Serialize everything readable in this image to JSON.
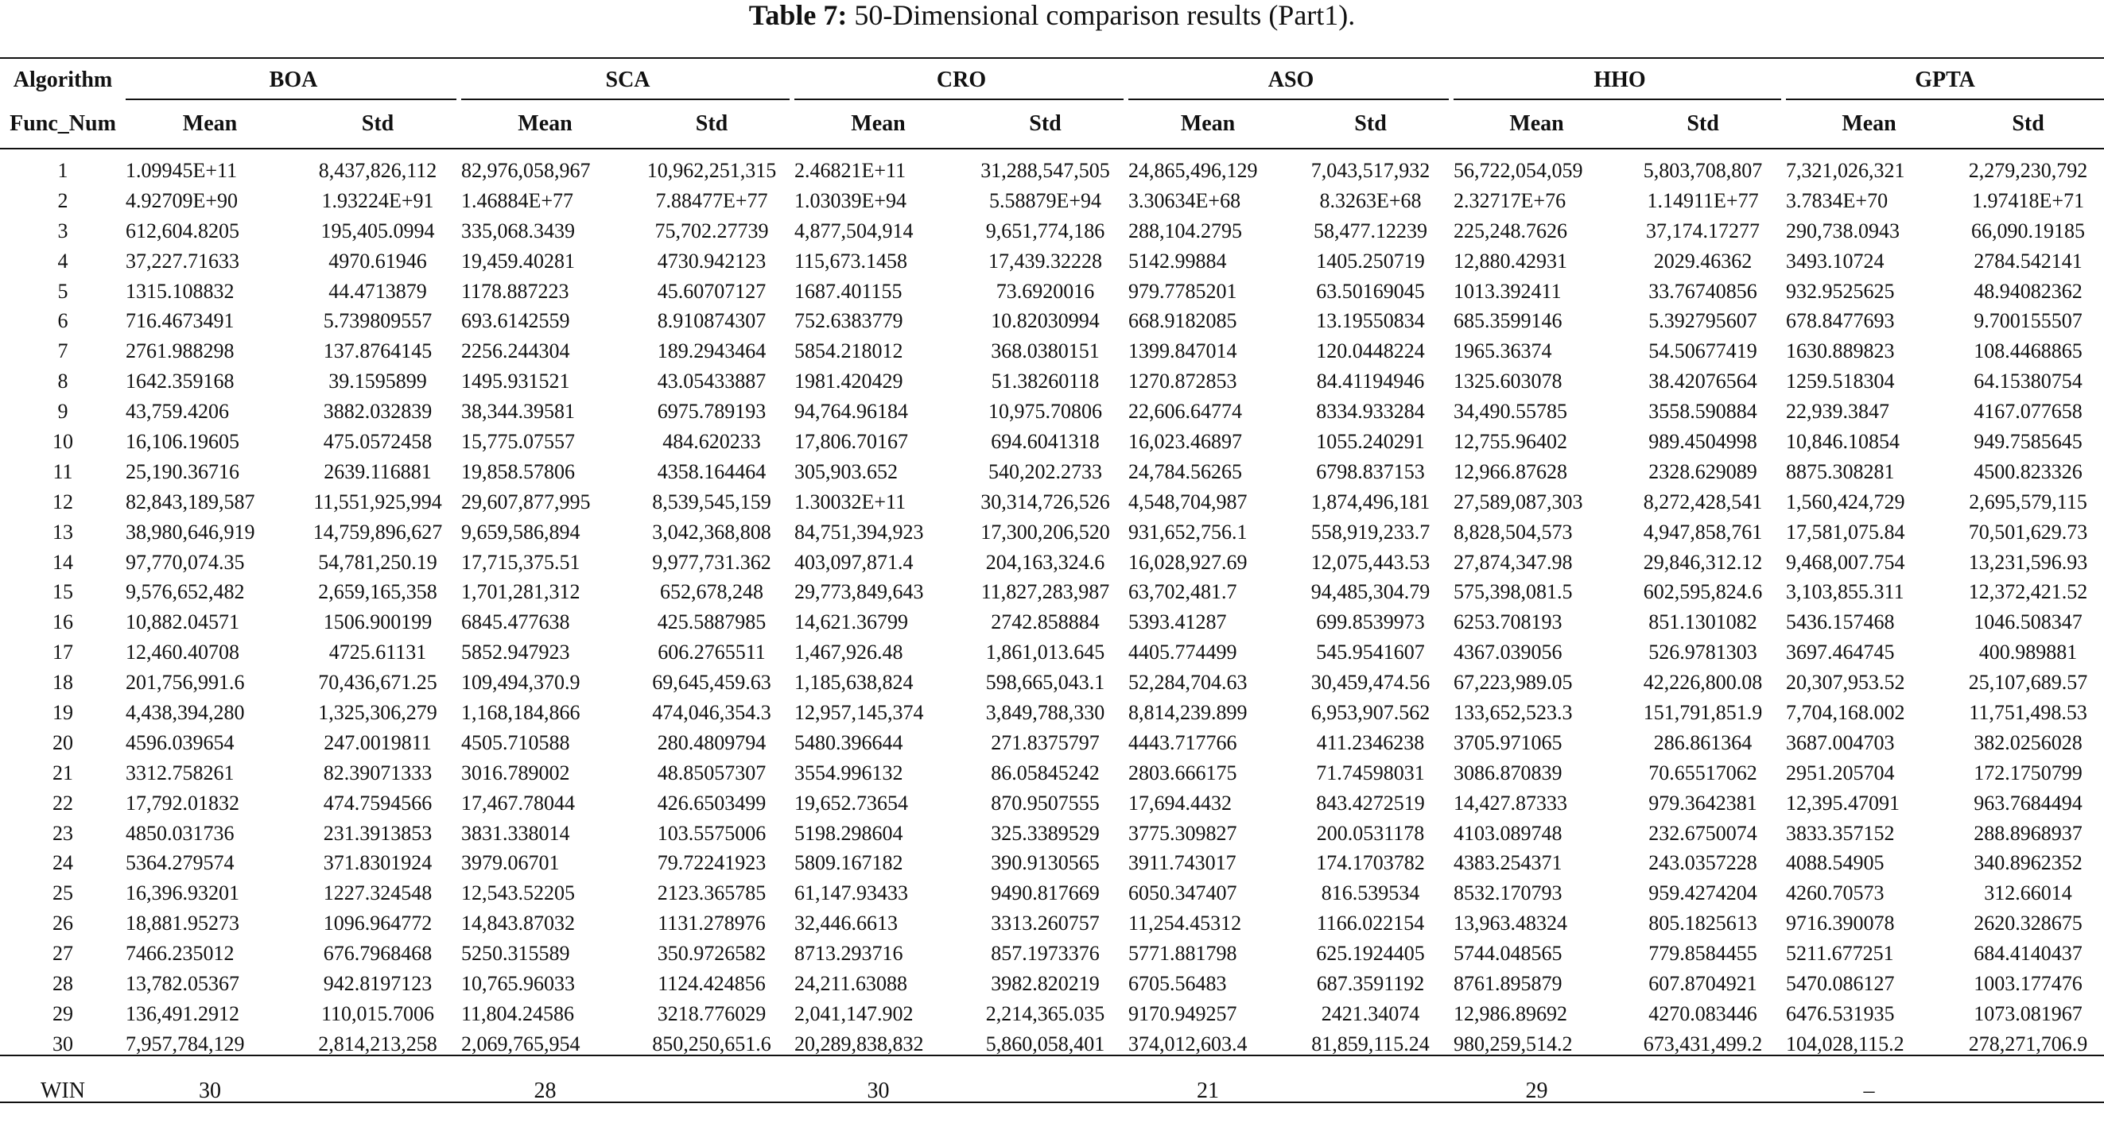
{
  "caption": {
    "label": "Table 7:",
    "text": "50-Dimensional comparison results (Part1)."
  },
  "header": {
    "row_label": "Algorithm",
    "sub_label": "Func_Num",
    "algorithms": [
      "BOA",
      "SCA",
      "CRO",
      "ASO",
      "HHO",
      "GPTA"
    ],
    "mean_label": "Mean",
    "std_label": "Std"
  },
  "rows": [
    {
      "num": "1",
      "cells": [
        "1.09945E+11",
        "8,437,826,112",
        "82,976,058,967",
        "10,962,251,315",
        "2.46821E+11",
        "31,288,547,505",
        "24,865,496,129",
        "7,043,517,932",
        "56,722,054,059",
        "5,803,708,807",
        "7,321,026,321",
        "2,279,230,792"
      ]
    },
    {
      "num": "2",
      "cells": [
        "4.92709E+90",
        "1.93224E+91",
        "1.46884E+77",
        "7.88477E+77",
        "1.03039E+94",
        "5.58879E+94",
        "3.30634E+68",
        "8.3263E+68",
        "2.32717E+76",
        "1.14911E+77",
        "3.7834E+70",
        "1.97418E+71"
      ]
    },
    {
      "num": "3",
      "cells": [
        "612,604.8205",
        "195,405.0994",
        "335,068.3439",
        "75,702.27739",
        "4,877,504,914",
        "9,651,774,186",
        "288,104.2795",
        "58,477.12239",
        "225,248.7626",
        "37,174.17277",
        "290,738.0943",
        "66,090.19185"
      ]
    },
    {
      "num": "4",
      "cells": [
        "37,227.71633",
        "4970.61946",
        "19,459.40281",
        "4730.942123",
        "115,673.1458",
        "17,439.32228",
        "5142.99884",
        "1405.250719",
        "12,880.42931",
        "2029.46362",
        "3493.10724",
        "2784.542141"
      ]
    },
    {
      "num": "5",
      "cells": [
        "1315.108832",
        "44.4713879",
        "1178.887223",
        "45.60707127",
        "1687.401155",
        "73.6920016",
        "979.7785201",
        "63.50169045",
        "1013.392411",
        "33.76740856",
        "932.9525625",
        "48.94082362"
      ]
    },
    {
      "num": "6",
      "cells": [
        "716.4673491",
        "5.739809557",
        "693.6142559",
        "8.910874307",
        "752.6383779",
        "10.82030994",
        "668.9182085",
        "13.19550834",
        "685.3599146",
        "5.392795607",
        "678.8477693",
        "9.700155507"
      ]
    },
    {
      "num": "7",
      "cells": [
        "2761.988298",
        "137.8764145",
        "2256.244304",
        "189.2943464",
        "5854.218012",
        "368.0380151",
        "1399.847014",
        "120.0448224",
        "1965.36374",
        "54.50677419",
        "1630.889823",
        "108.4468865"
      ]
    },
    {
      "num": "8",
      "cells": [
        "1642.359168",
        "39.1595899",
        "1495.931521",
        "43.05433887",
        "1981.420429",
        "51.38260118",
        "1270.872853",
        "84.41194946",
        "1325.603078",
        "38.42076564",
        "1259.518304",
        "64.15380754"
      ]
    },
    {
      "num": "9",
      "cells": [
        "43,759.4206",
        "3882.032839",
        "38,344.39581",
        "6975.789193",
        "94,764.96184",
        "10,975.70806",
        "22,606.64774",
        "8334.933284",
        "34,490.55785",
        "3558.590884",
        "22,939.3847",
        "4167.077658"
      ]
    },
    {
      "num": "10",
      "cells": [
        "16,106.19605",
        "475.0572458",
        "15,775.07557",
        "484.620233",
        "17,806.70167",
        "694.6041318",
        "16,023.46897",
        "1055.240291",
        "12,755.96402",
        "989.4504998",
        "10,846.10854",
        "949.7585645"
      ]
    },
    {
      "num": "11",
      "cells": [
        "25,190.36716",
        "2639.116881",
        "19,858.57806",
        "4358.164464",
        "305,903.652",
        "540,202.2733",
        "24,784.56265",
        "6798.837153",
        "12,966.87628",
        "2328.629089",
        "8875.308281",
        "4500.823326"
      ]
    },
    {
      "num": "12",
      "cells": [
        "82,843,189,587",
        "11,551,925,994",
        "29,607,877,995",
        "8,539,545,159",
        "1.30032E+11",
        "30,314,726,526",
        "4,548,704,987",
        "1,874,496,181",
        "27,589,087,303",
        "8,272,428,541",
        "1,560,424,729",
        "2,695,579,115"
      ]
    },
    {
      "num": "13",
      "cells": [
        "38,980,646,919",
        "14,759,896,627",
        "9,659,586,894",
        "3,042,368,808",
        "84,751,394,923",
        "17,300,206,520",
        "931,652,756.1",
        "558,919,233.7",
        "8,828,504,573",
        "4,947,858,761",
        "17,581,075.84",
        "70,501,629.73"
      ]
    },
    {
      "num": "14",
      "cells": [
        "97,770,074.35",
        "54,781,250.19",
        "17,715,375.51",
        "9,977,731.362",
        "403,097,871.4",
        "204,163,324.6",
        "16,028,927.69",
        "12,075,443.53",
        "27,874,347.98",
        "29,846,312.12",
        "9,468,007.754",
        "13,231,596.93"
      ]
    },
    {
      "num": "15",
      "cells": [
        "9,576,652,482",
        "2,659,165,358",
        "1,701,281,312",
        "652,678,248",
        "29,773,849,643",
        "11,827,283,987",
        "63,702,481.7",
        "94,485,304.79",
        "575,398,081.5",
        "602,595,824.6",
        "3,103,855.311",
        "12,372,421.52"
      ]
    },
    {
      "num": "16",
      "cells": [
        "10,882.04571",
        "1506.900199",
        "6845.477638",
        "425.5887985",
        "14,621.36799",
        "2742.858884",
        "5393.41287",
        "699.8539973",
        "6253.708193",
        "851.1301082",
        "5436.157468",
        "1046.508347"
      ]
    },
    {
      "num": "17",
      "cells": [
        "12,460.40708",
        "4725.61131",
        "5852.947923",
        "606.2765511",
        "1,467,926.48",
        "1,861,013.645",
        "4405.774499",
        "545.9541607",
        "4367.039056",
        "526.9781303",
        "3697.464745",
        "400.989881"
      ]
    },
    {
      "num": "18",
      "cells": [
        "201,756,991.6",
        "70,436,671.25",
        "109,494,370.9",
        "69,645,459.63",
        "1,185,638,824",
        "598,665,043.1",
        "52,284,704.63",
        "30,459,474.56",
        "67,223,989.05",
        "42,226,800.08",
        "20,307,953.52",
        "25,107,689.57"
      ]
    },
    {
      "num": "19",
      "cells": [
        "4,438,394,280",
        "1,325,306,279",
        "1,168,184,866",
        "474,046,354.3",
        "12,957,145,374",
        "3,849,788,330",
        "8,814,239.899",
        "6,953,907.562",
        "133,652,523.3",
        "151,791,851.9",
        "7,704,168.002",
        "11,751,498.53"
      ]
    },
    {
      "num": "20",
      "cells": [
        "4596.039654",
        "247.0019811",
        "4505.710588",
        "280.4809794",
        "5480.396644",
        "271.8375797",
        "4443.717766",
        "411.2346238",
        "3705.971065",
        "286.861364",
        "3687.004703",
        "382.0256028"
      ]
    },
    {
      "num": "21",
      "cells": [
        "3312.758261",
        "82.39071333",
        "3016.789002",
        "48.85057307",
        "3554.996132",
        "86.05845242",
        "2803.666175",
        "71.74598031",
        "3086.870839",
        "70.65517062",
        "2951.205704",
        "172.1750799"
      ]
    },
    {
      "num": "22",
      "cells": [
        "17,792.01832",
        "474.7594566",
        "17,467.78044",
        "426.6503499",
        "19,652.73654",
        "870.9507555",
        "17,694.4432",
        "843.4272519",
        "14,427.87333",
        "979.3642381",
        "12,395.47091",
        "963.7684494"
      ]
    },
    {
      "num": "23",
      "cells": [
        "4850.031736",
        "231.3913853",
        "3831.338014",
        "103.5575006",
        "5198.298604",
        "325.3389529",
        "3775.309827",
        "200.0531178",
        "4103.089748",
        "232.6750074",
        "3833.357152",
        "288.8968937"
      ]
    },
    {
      "num": "24",
      "cells": [
        "5364.279574",
        "371.8301924",
        "3979.06701",
        "79.72241923",
        "5809.167182",
        "390.9130565",
        "3911.743017",
        "174.1703782",
        "4383.254371",
        "243.0357228",
        "4088.54905",
        "340.8962352"
      ]
    },
    {
      "num": "25",
      "cells": [
        "16,396.93201",
        "1227.324548",
        "12,543.52205",
        "2123.365785",
        "61,147.93433",
        "9490.817669",
        "6050.347407",
        "816.539534",
        "8532.170793",
        "959.4274204",
        "4260.70573",
        "312.66014"
      ]
    },
    {
      "num": "26",
      "cells": [
        "18,881.95273",
        "1096.964772",
        "14,843.87032",
        "1131.278976",
        "32,446.6613",
        "3313.260757",
        "11,254.45312",
        "1166.022154",
        "13,963.48324",
        "805.1825613",
        "9716.390078",
        "2620.328675"
      ]
    },
    {
      "num": "27",
      "cells": [
        "7466.235012",
        "676.7968468",
        "5250.315589",
        "350.9726582",
        "8713.293716",
        "857.1973376",
        "5771.881798",
        "625.1924405",
        "5744.048565",
        "779.8584455",
        "5211.677251",
        "684.4140437"
      ]
    },
    {
      "num": "28",
      "cells": [
        "13,782.05367",
        "942.8197123",
        "10,765.96033",
        "1124.424856",
        "24,211.63088",
        "3982.820219",
        "6705.56483",
        "687.3591192",
        "8761.895879",
        "607.8704921",
        "5470.086127",
        "1003.177476"
      ]
    },
    {
      "num": "29",
      "cells": [
        "136,491.2912",
        "110,015.7006",
        "11,804.24586",
        "3218.776029",
        "2,041,147.902",
        "2,214,365.035",
        "9170.949257",
        "2421.34074",
        "12,986.89692",
        "4270.083446",
        "6476.531935",
        "1073.081967"
      ]
    },
    {
      "num": "30",
      "cells": [
        "7,957,784,129",
        "2,814,213,258",
        "2,069,765,954",
        "850,250,651.6",
        "20,289,838,832",
        "5,860,058,401",
        "374,012,603.4",
        "81,859,115.24",
        "980,259,514.2",
        "673,431,499.2",
        "104,028,115.2",
        "278,271,706.9"
      ]
    }
  ],
  "win": {
    "label": "WIN",
    "values": [
      "30",
      "28",
      "30",
      "21",
      "29",
      "–"
    ]
  }
}
